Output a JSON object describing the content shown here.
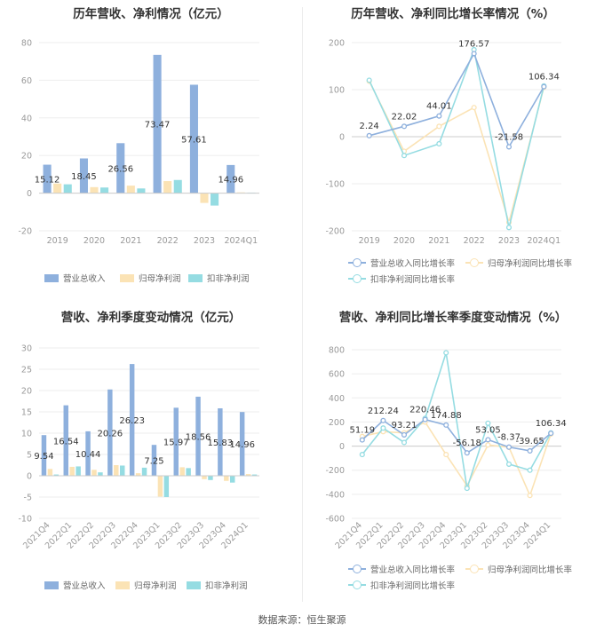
{
  "colors": {
    "rev": "#8eb0dd",
    "np": "#fbe3b5",
    "dnp": "#95dce2",
    "grid": "#eeeeee",
    "label": "#333333",
    "tick": "#999999"
  },
  "source": "数据来源：恒生聚源",
  "chart_data": [
    {
      "type": "bar",
      "title": "历年营收、净利情况（亿元）",
      "categories": [
        "2019",
        "2020",
        "2021",
        "2022",
        "2023",
        "2024Q1"
      ],
      "ylim": [
        -20,
        80
      ],
      "yticks": [
        -20,
        0,
        20,
        40,
        60,
        80
      ],
      "series": [
        {
          "name": "营业总收入",
          "values": [
            15.12,
            18.45,
            26.56,
            73.47,
            57.61,
            14.96
          ],
          "labeled": true
        },
        {
          "name": "归母净利润",
          "values": [
            5.1,
            3.2,
            4.0,
            6.4,
            -5.2,
            0.4
          ]
        },
        {
          "name": "扣非净利润",
          "values": [
            4.7,
            3.0,
            2.5,
            7.0,
            -6.6,
            0.3
          ]
        }
      ]
    },
    {
      "type": "line",
      "title": "历年营收、净利同比增长率情况（%）",
      "categories": [
        "2019",
        "2020",
        "2021",
        "2022",
        "2023",
        "2024Q1"
      ],
      "ylim": [
        -200,
        200
      ],
      "yticks": [
        -200,
        -100,
        0,
        100,
        200
      ],
      "series": [
        {
          "name": "营业总收入同比增长率",
          "values": [
            2.24,
            22.02,
            44.01,
            176.57,
            -21.58,
            106.34
          ],
          "labeled": true
        },
        {
          "name": "归母净利润同比增长率",
          "values": [
            118,
            -31,
            22,
            62,
            -182,
            105
          ]
        },
        {
          "name": "扣非净利润同比增长率",
          "values": [
            120,
            -40,
            -15,
            185,
            -193,
            108
          ]
        }
      ]
    },
    {
      "type": "bar",
      "title": "营收、净利季度变动情况（亿元）",
      "categories": [
        "2021Q4",
        "2022Q1",
        "2022Q2",
        "2022Q3",
        "2022Q4",
        "2023Q1",
        "2023Q2",
        "2023Q3",
        "2023Q4",
        "2024Q1"
      ],
      "ylim": [
        -10,
        30
      ],
      "yticks": [
        -10,
        -5,
        0,
        5,
        10,
        15,
        20,
        25,
        30
      ],
      "series": [
        {
          "name": "营业总收入",
          "values": [
            9.54,
            16.54,
            10.44,
            20.26,
            26.23,
            7.25,
            15.97,
            18.56,
            15.83,
            14.96
          ],
          "labeled": true
        },
        {
          "name": "归母净利润",
          "values": [
            1.6,
            2.1,
            1.4,
            2.5,
            0.6,
            -4.9,
            2.0,
            -0.8,
            -1.2,
            0.4
          ]
        },
        {
          "name": "扣非净利润",
          "values": [
            0.3,
            2.2,
            0.8,
            2.4,
            1.9,
            -5.0,
            1.8,
            -1.0,
            -1.6,
            0.3
          ]
        }
      ]
    },
    {
      "type": "line",
      "title": "营收、净利同比增长率季度变动情况（%）",
      "categories": [
        "2021Q4",
        "2022Q1",
        "2022Q2",
        "2022Q3",
        "2022Q4",
        "2023Q1",
        "2023Q2",
        "2023Q3",
        "2023Q4",
        "2024Q1"
      ],
      "ylim": [
        -600,
        800
      ],
      "yticks": [
        -600,
        -400,
        -200,
        0,
        200,
        400,
        600,
        800
      ],
      "series": [
        {
          "name": "营业总收入同比增长率",
          "values": [
            51.19,
            212.24,
            93.21,
            220.46,
            174.88,
            -56.18,
            53.05,
            -8.37,
            -39.65,
            106.34
          ],
          "labeled": true
        },
        {
          "name": "归母净利润同比增长率",
          "values": [
            80,
            120,
            110,
            200,
            -70,
            -330,
            10,
            -10,
            -410,
            100
          ]
        },
        {
          "name": "扣非净利润同比增长率",
          "values": [
            -70,
            150,
            30,
            230,
            775,
            -350,
            190,
            -150,
            -200,
            110
          ]
        }
      ]
    }
  ]
}
